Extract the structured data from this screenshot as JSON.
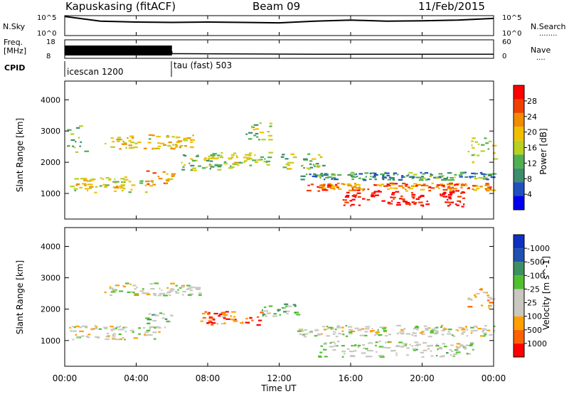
{
  "header": {
    "station": "Kapuskasing (fitACF)",
    "beam": "Beam 09",
    "date": "11/Feb/2015"
  },
  "side_labels": {
    "nsky": "N.Sky",
    "freq_line1": "Freq.",
    "freq_line2": "[MHz]",
    "cpid": "CPID",
    "nsearch": "N.Search",
    "nsearch_dots": "........",
    "nave": "Nave",
    "nave_dots": "....",
    "nsky_top": "10^5",
    "nsky_bottom": "10^0",
    "nsearch_top": "10^5",
    "nsearch_bottom": "10^0",
    "freq_top": "18",
    "freq_bottom": "8",
    "nave_top": "60",
    "nave_bottom": "0"
  },
  "cpid_segments": [
    {
      "label": "icescan 1200",
      "start": 0,
      "end": 6
    },
    {
      "label": "tau (fast) 503",
      "start": 6,
      "end": 24
    }
  ],
  "colors": {
    "power": [
      "#0000ee",
      "#2050c0",
      "#3c8c6e",
      "#50b050",
      "#b8d020",
      "#f0c000",
      "#f08c00",
      "#f04000",
      "#ff0000"
    ],
    "velocity": [
      "#ff0000",
      "#ff6000",
      "#ffa000",
      "#c8c8c0",
      "#c8c8c0",
      "#50c030",
      "#3c9060",
      "#2050b0",
      "#1030c0"
    ]
  },
  "chart_data": [
    {
      "type": "line",
      "name": "N.Sky / N.Search",
      "x": [
        0,
        2,
        4,
        6,
        8,
        10,
        12,
        14,
        16,
        18,
        20,
        22,
        24
      ],
      "y_log10": [
        4.8,
        3.6,
        3.4,
        3.3,
        3.4,
        3.3,
        3.2,
        3.6,
        3.9,
        3.6,
        3.7,
        3.9,
        4.3
      ],
      "ylim": [
        "10^0",
        "10^5"
      ]
    },
    {
      "type": "line",
      "name": "Freq / Nave",
      "x": [
        0,
        6,
        6,
        14,
        24
      ],
      "freq_mhz": [
        11.5,
        11.5,
        10.5,
        10.2,
        10.2
      ],
      "freq_ylim": [
        8,
        18
      ],
      "nave_ylim": [
        0,
        60
      ]
    },
    {
      "type": "heatmap",
      "ylabel": "Slant Range [km]",
      "xlabel": "Time UT",
      "xlim": [
        0,
        24
      ],
      "ylim": [
        180,
        4600
      ],
      "yticks": [
        1000,
        2000,
        3000,
        4000
      ],
      "colorbar_label": "Power [dB]",
      "colorbar_ticks": [
        "4",
        "8",
        "12",
        "16",
        "20",
        "24",
        "28"
      ],
      "bands": [
        {
          "t0": 0.1,
          "t1": 4.6,
          "r0": 1050,
          "r1": 1550,
          "level": 0.55
        },
        {
          "t0": 4.4,
          "t1": 6.0,
          "r0": 1250,
          "r1": 1750,
          "level": 0.7
        },
        {
          "t0": 0.1,
          "t1": 1.2,
          "r0": 2300,
          "r1": 3200,
          "level": 0.4
        },
        {
          "t0": 2.2,
          "t1": 7.2,
          "r0": 2450,
          "r1": 2900,
          "level": 0.6
        },
        {
          "t0": 6.5,
          "t1": 9.5,
          "r0": 1750,
          "r1": 2300,
          "level": 0.45
        },
        {
          "t0": 8.0,
          "t1": 11.5,
          "r0": 1900,
          "r1": 2350,
          "level": 0.5
        },
        {
          "t0": 10.0,
          "t1": 11.5,
          "r0": 2700,
          "r1": 3300,
          "level": 0.45
        },
        {
          "t0": 12.0,
          "t1": 14.5,
          "r0": 1800,
          "r1": 2300,
          "level": 0.45
        },
        {
          "t0": 13.0,
          "t1": 24.0,
          "r0": 1450,
          "r1": 1700,
          "level": 0.3
        },
        {
          "t0": 13.5,
          "t1": 24.0,
          "r0": 1100,
          "r1": 1350,
          "level": 0.75
        },
        {
          "t0": 15.5,
          "t1": 22.5,
          "r0": 600,
          "r1": 1100,
          "level": 0.95
        },
        {
          "t0": 22.5,
          "t1": 24.0,
          "r0": 1900,
          "r1": 2800,
          "level": 0.5
        }
      ]
    },
    {
      "type": "heatmap",
      "ylabel": "Slant Range [km]",
      "xlabel": "Time UT",
      "xlim": [
        0,
        24
      ],
      "ylim": [
        180,
        4600
      ],
      "yticks": [
        1000,
        2000,
        3000,
        4000
      ],
      "xticks": [
        "00:00",
        "04:00",
        "08:00",
        "12:00",
        "16:00",
        "20:00",
        "00:00"
      ],
      "colorbar_label": "Velocity [m s^-1]",
      "colorbar_ticks": [
        "1000",
        "500",
        "100",
        "25",
        "-25",
        "-100",
        "-500",
        "-1000"
      ],
      "bands": [
        {
          "t0": 0.1,
          "t1": 5.5,
          "r0": 1050,
          "r1": 1500,
          "level": 0.45
        },
        {
          "t0": 4.5,
          "t1": 6.0,
          "r0": 1400,
          "r1": 1900,
          "level": 0.55
        },
        {
          "t0": 2.2,
          "t1": 7.5,
          "r0": 2450,
          "r1": 2850,
          "level": 0.45
        },
        {
          "t0": 7.5,
          "t1": 11.0,
          "r0": 1500,
          "r1": 1950,
          "level": 0.2
        },
        {
          "t0": 11.0,
          "t1": 13.0,
          "r0": 1800,
          "r1": 2200,
          "level": 0.6
        },
        {
          "t0": 13.0,
          "t1": 24.0,
          "r0": 1150,
          "r1": 1500,
          "level": 0.45
        },
        {
          "t0": 14.0,
          "t1": 23.0,
          "r0": 500,
          "r1": 1000,
          "level": 0.5
        },
        {
          "t0": 22.5,
          "t1": 24.0,
          "r0": 2000,
          "r1": 2700,
          "level": 0.35
        }
      ]
    }
  ]
}
